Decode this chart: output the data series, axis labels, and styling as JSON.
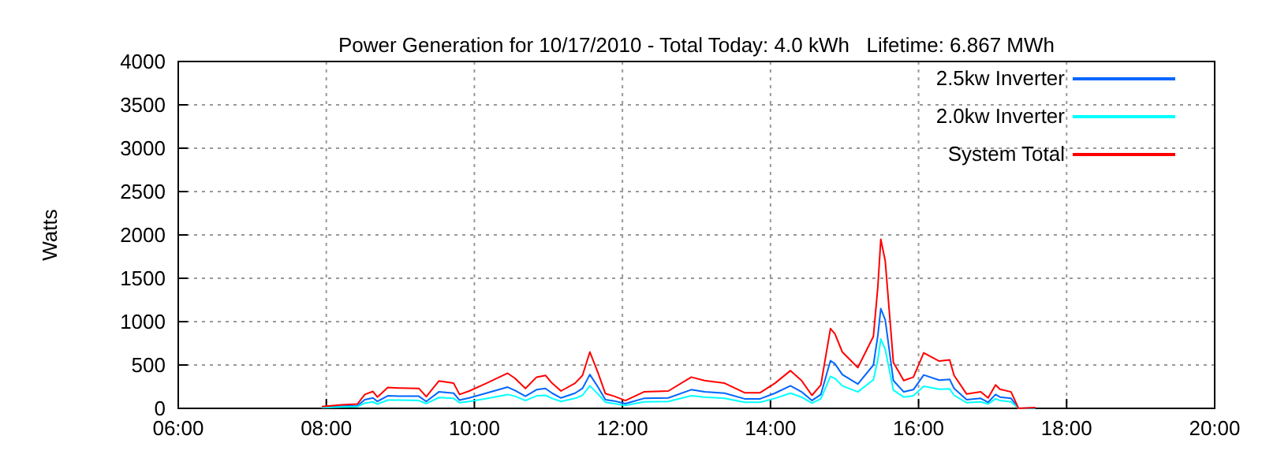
{
  "chart_data": {
    "type": "line",
    "title": "Power Generation for 10/17/2010 - Total Today: 4.0 kWh   Lifetime: 6.867 MWh",
    "ylabel": "Watts",
    "x": [
      7.94,
      8.21,
      8.42,
      8.52,
      8.63,
      8.69,
      8.83,
      8.98,
      9.25,
      9.35,
      9.52,
      9.72,
      9.8,
      9.93,
      10.14,
      10.45,
      10.55,
      10.69,
      10.84,
      10.96,
      11.05,
      11.17,
      11.36,
      11.46,
      11.56,
      11.67,
      11.77,
      11.89,
      12.04,
      12.29,
      12.62,
      12.93,
      13.11,
      13.38,
      13.65,
      13.86,
      14.06,
      14.27,
      14.42,
      14.56,
      14.68,
      14.81,
      14.87,
      14.97,
      15.18,
      15.39,
      15.45,
      15.49,
      15.55,
      15.66,
      15.8,
      15.93,
      16.07,
      16.28,
      16.42,
      16.48,
      16.65,
      16.84,
      16.94,
      17.04,
      17.1,
      17.25,
      17.35,
      17.58
    ],
    "series": [
      {
        "name": "2.5kw Inverter",
        "color": "#0066ff",
        "values": [
          12,
          25,
          30,
          100,
          120,
          80,
          145,
          140,
          140,
          80,
          190,
          175,
          95,
          120,
          170,
          245,
          205,
          140,
          215,
          230,
          175,
          120,
          175,
          230,
          390,
          245,
          100,
          85,
          55,
          115,
          120,
          215,
          190,
          175,
          110,
          110,
          175,
          260,
          190,
          90,
          160,
          550,
          515,
          390,
          280,
          500,
          840,
          1150,
          1020,
          320,
          190,
          215,
          385,
          325,
          335,
          230,
          100,
          115,
          70,
          160,
          130,
          115,
          0,
          5
        ]
      },
      {
        "name": "2.0kw Inverter",
        "color": "#00ffff",
        "values": [
          8,
          15,
          20,
          60,
          75,
          50,
          95,
          95,
          90,
          55,
          125,
          115,
          65,
          80,
          110,
          160,
          140,
          90,
          145,
          150,
          115,
          80,
          115,
          150,
          260,
          165,
          70,
          55,
          35,
          75,
          80,
          145,
          130,
          115,
          70,
          70,
          115,
          175,
          130,
          60,
          110,
          370,
          345,
          260,
          190,
          330,
          560,
          800,
          680,
          210,
          130,
          145,
          255,
          220,
          225,
          150,
          65,
          75,
          50,
          110,
          90,
          75,
          0,
          5
        ]
      },
      {
        "name": "System Total",
        "color": "#ff0000",
        "values": [
          20,
          40,
          50,
          160,
          195,
          130,
          240,
          235,
          230,
          135,
          315,
          290,
          160,
          200,
          280,
          405,
          345,
          230,
          360,
          380,
          290,
          200,
          290,
          380,
          650,
          410,
          170,
          140,
          90,
          190,
          200,
          360,
          320,
          290,
          180,
          180,
          290,
          435,
          320,
          150,
          270,
          920,
          860,
          650,
          470,
          830,
          1400,
          1950,
          1700,
          530,
          320,
          360,
          640,
          545,
          560,
          380,
          165,
          190,
          120,
          270,
          220,
          190,
          0,
          10
        ]
      }
    ],
    "xlim": [
      6,
      20
    ],
    "xticks": [
      {
        "value": 6,
        "label": "06:00"
      },
      {
        "value": 8,
        "label": "08:00"
      },
      {
        "value": 10,
        "label": "10:00"
      },
      {
        "value": 12,
        "label": "12:00"
      },
      {
        "value": 14,
        "label": "14:00"
      },
      {
        "value": 16,
        "label": "16:00"
      },
      {
        "value": 18,
        "label": "18:00"
      },
      {
        "value": 20,
        "label": "20:00"
      }
    ],
    "ylim": [
      0,
      4000
    ],
    "yticks": [
      0,
      500,
      1000,
      1500,
      2000,
      2500,
      3000,
      3500,
      4000
    ],
    "grid": true,
    "legend": "top right",
    "line_style": "solid",
    "marker": "none"
  }
}
